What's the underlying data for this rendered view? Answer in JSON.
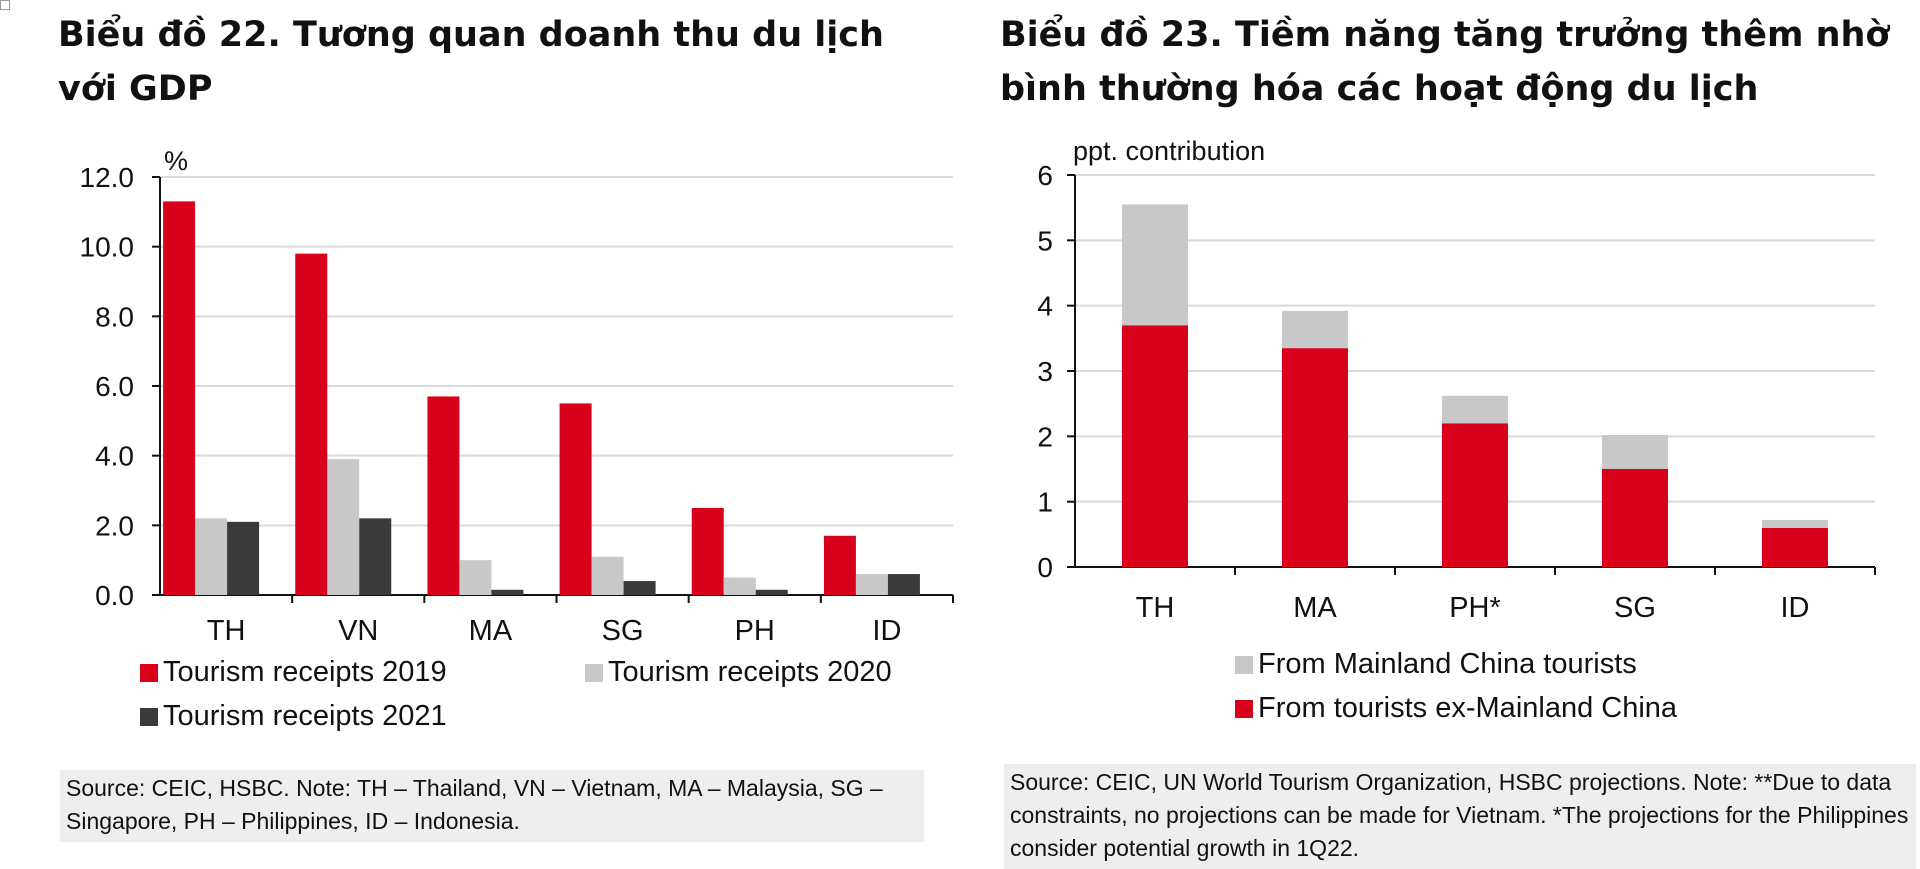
{
  "chart_data": [
    {
      "type": "bar",
      "title": "Biểu đồ 22. Tương quan doanh thu du lịch với GDP",
      "ylabel": "%",
      "ylim": [
        0,
        12
      ],
      "yticks": [
        "12.0",
        "10.0",
        "8.0",
        "6.0",
        "4.0",
        "2.0",
        "0.0"
      ],
      "categories": [
        "TH",
        "VN",
        "MA",
        "SG",
        "PH",
        "ID"
      ],
      "series": [
        {
          "name": "Tourism receipts 2019",
          "color": "#d9001b",
          "values": [
            11.3,
            9.8,
            5.7,
            5.5,
            2.5,
            1.7
          ]
        },
        {
          "name": "Tourism receipts 2020",
          "color": "#c8c8c8",
          "values": [
            2.2,
            3.9,
            1.0,
            1.1,
            0.5,
            0.6
          ]
        },
        {
          "name": "Tourism receipts 2021",
          "color": "#3a3a3a",
          "values": [
            2.1,
            2.2,
            0.15,
            0.4,
            0.15,
            0.6
          ]
        }
      ],
      "grid": true,
      "legend_position": "bottom",
      "source": "Source: CEIC, HSBC. Note: TH – Thailand, VN – Vietnam, MA – Malaysia, SG – Singapore, PH – Philippines, ID – Indonesia."
    },
    {
      "type": "bar",
      "stacked": true,
      "title": "Biểu đồ 23. Tiềm năng tăng trưởng thêm nhờ bình thường hóa các hoạt động du lịch",
      "ylabel": "ppt. contribution",
      "ylim": [
        0,
        6
      ],
      "yticks": [
        "6",
        "5",
        "4",
        "3",
        "2",
        "1",
        "0"
      ],
      "categories": [
        "TH",
        "MA",
        "PH*",
        "SG",
        "ID"
      ],
      "series": [
        {
          "name": "From tourists ex-Mainland China",
          "color": "#d9001b",
          "values": [
            3.7,
            3.35,
            2.2,
            1.5,
            0.6
          ]
        },
        {
          "name": "From Mainland China tourists",
          "color": "#c8c8c8",
          "values": [
            1.85,
            0.57,
            0.42,
            0.52,
            0.12
          ]
        }
      ],
      "grid": true,
      "legend_position": "bottom",
      "source": "Source: CEIC, UN World Tourism Organization, HSBC projections. Note: **Due to data constraints, no projections can be made for Vietnam. *The projections for the Philippines consider potential growth in 1Q22."
    }
  ]
}
